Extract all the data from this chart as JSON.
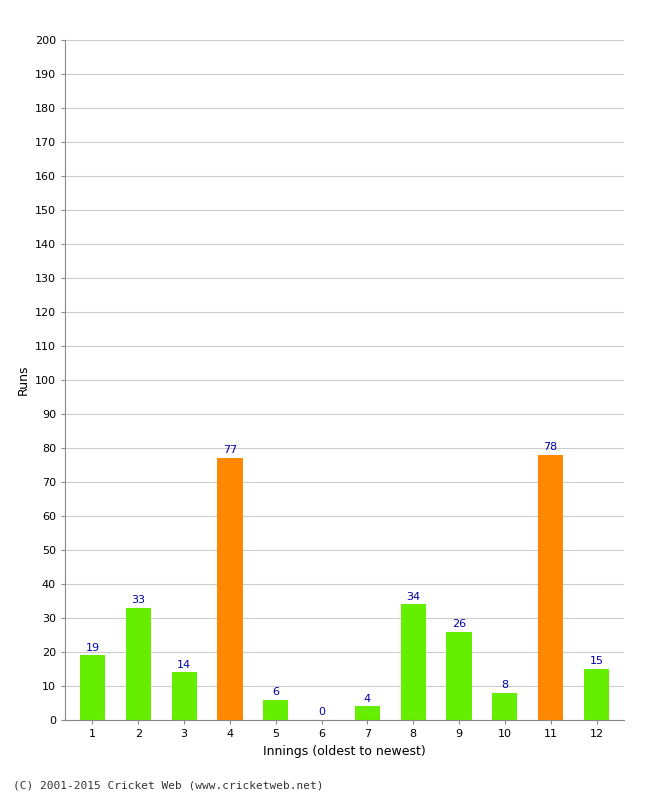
{
  "categories": [
    "1",
    "2",
    "3",
    "4",
    "5",
    "6",
    "7",
    "8",
    "9",
    "10",
    "11",
    "12"
  ],
  "values": [
    19,
    33,
    14,
    77,
    6,
    0,
    4,
    34,
    26,
    8,
    78,
    15
  ],
  "bar_colors": [
    "#66ee00",
    "#66ee00",
    "#66ee00",
    "#ff8800",
    "#66ee00",
    "#66ee00",
    "#66ee00",
    "#66ee00",
    "#66ee00",
    "#66ee00",
    "#ff8800",
    "#66ee00"
  ],
  "xlabel": "Innings (oldest to newest)",
  "ylabel": "Runs",
  "ylim": [
    0,
    200
  ],
  "ytick_step": 10,
  "label_color": "#0000aa",
  "background_color": "#ffffff",
  "grid_color": "#cccccc",
  "footer": "(C) 2001-2015 Cricket Web (www.cricketweb.net)",
  "label_fontsize": 8,
  "axis_tick_fontsize": 8,
  "axis_label_fontsize": 9,
  "footer_fontsize": 8,
  "bar_width": 0.55
}
